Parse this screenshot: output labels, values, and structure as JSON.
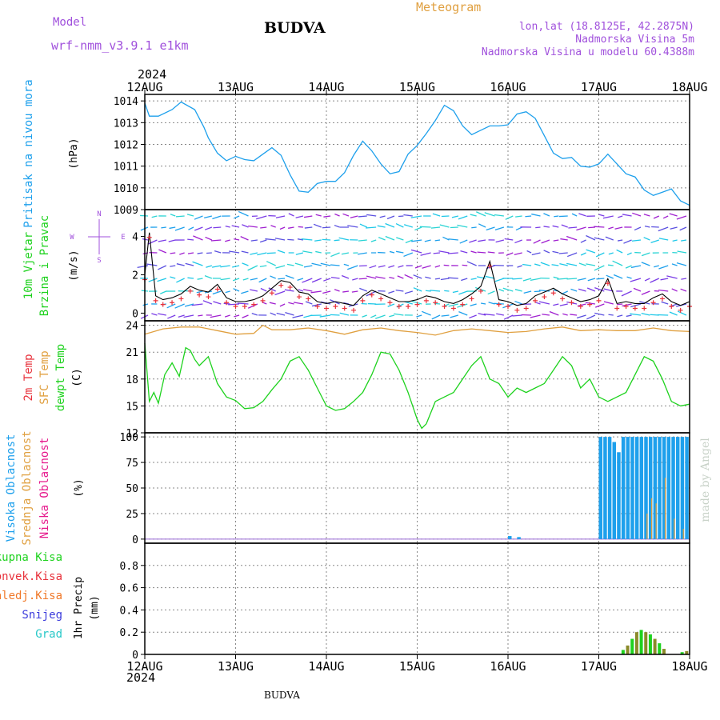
{
  "header": {
    "model_label": "Model",
    "model_name": "wrf-nmm_v3.9.1  e1km",
    "station": "BUDVA",
    "title": "Meteogram",
    "lonlat": "lon,lat (18.8125E, 42.2875N)",
    "elevation": "Nadmorska Visina 5m",
    "model_elevation": "Nadmorska Visina u modelu 60.4388m",
    "year_top": "2024",
    "year_bottom": "2024",
    "footer_station": "BUDVA",
    "credit": "made by Angel"
  },
  "colors": {
    "pressure": "#1ea0ec",
    "temp2m": "#e8323c",
    "sfc_temp": "#e0a040",
    "dewpt": "#1ed21e",
    "cloud_high": "#1ea0ec",
    "cloud_mid": "#e0a040",
    "cloud_low": "#e6198c",
    "rain_total": "#1ed21e",
    "rain_conv": "#e8323c",
    "rain_frozen": "#f07828",
    "snow": "#3c3cdc",
    "graupel": "#28c8c8",
    "wind_label": "#1ed21e",
    "wind_label2": "#1ea0ec",
    "compass": "#a050dc",
    "grid": "#888888"
  },
  "chart_data": [
    {
      "panel": "pressure",
      "type": "line",
      "ylabel": "Pritisak na nivou mora",
      "unit": "(hPa)",
      "ylim": [
        1009,
        1014.3
      ],
      "yticks": [
        1009,
        1010,
        1011,
        1012,
        1013,
        1014
      ],
      "x_day_index": [
        0,
        0.05,
        0.15,
        0.3,
        0.4,
        0.55,
        0.65,
        0.7,
        0.8,
        0.9,
        1.0,
        1.1,
        1.2,
        1.3,
        1.4,
        1.5,
        1.6,
        1.7,
        1.8,
        1.9,
        2.0,
        2.1,
        2.2,
        2.3,
        2.4,
        2.5,
        2.6,
        2.7,
        2.8,
        2.9,
        3.0,
        3.1,
        3.2,
        3.3,
        3.4,
        3.5,
        3.6,
        3.7,
        3.8,
        3.9,
        4.0,
        4.1,
        4.2,
        4.3,
        4.4,
        4.5,
        4.6,
        4.7,
        4.8,
        4.9,
        5.0,
        5.1,
        5.2,
        5.3,
        5.4,
        5.5,
        5.6,
        5.7,
        5.8,
        5.9,
        6.0
      ],
      "values": [
        1013.9,
        1013.3,
        1013.3,
        1013.6,
        1013.95,
        1013.6,
        1012.8,
        1012.3,
        1011.6,
        1011.25,
        1011.45,
        1011.3,
        1011.25,
        1011.55,
        1011.85,
        1011.5,
        1010.6,
        1009.85,
        1009.8,
        1010.2,
        1010.3,
        1010.3,
        1010.7,
        1011.5,
        1012.15,
        1011.7,
        1011.1,
        1010.65,
        1010.75,
        1011.55,
        1011.95,
        1012.5,
        1013.1,
        1013.8,
        1013.55,
        1012.85,
        1012.45,
        1012.65,
        1012.85,
        1012.85,
        1012.9,
        1013.4,
        1013.5,
        1013.2,
        1012.4,
        1011.6,
        1011.35,
        1011.4,
        1011.0,
        1010.95,
        1011.1,
        1011.55,
        1011.1,
        1010.65,
        1010.5,
        1009.9,
        1009.65,
        1009.8,
        1009.95,
        1009.4,
        1009.2
      ]
    },
    {
      "panel": "wind",
      "type": "line",
      "ylabel": "10m Vjetar",
      "ylabel2": "Brzina i Pravac",
      "unit": "(m/s)",
      "ylim": [
        -0.4,
        5.4
      ],
      "yticks": [
        0,
        2,
        4
      ],
      "compass": [
        "N",
        "E",
        "S",
        "W"
      ],
      "x_day_index": [
        0,
        0.05,
        0.12,
        0.2,
        0.3,
        0.4,
        0.5,
        0.6,
        0.7,
        0.8,
        0.9,
        1.0,
        1.1,
        1.2,
        1.3,
        1.4,
        1.5,
        1.6,
        1.7,
        1.8,
        1.9,
        2.0,
        2.1,
        2.2,
        2.3,
        2.4,
        2.5,
        2.6,
        2.7,
        2.8,
        2.9,
        3.0,
        3.1,
        3.2,
        3.3,
        3.4,
        3.5,
        3.6,
        3.7,
        3.8,
        3.9,
        4.0,
        4.1,
        4.2,
        4.3,
        4.4,
        4.5,
        4.6,
        4.7,
        4.8,
        4.9,
        5.0,
        5.1,
        5.2,
        5.3,
        5.4,
        5.5,
        5.6,
        5.7,
        5.8,
        5.9,
        6.0
      ],
      "values": [
        2.0,
        4.2,
        0.9,
        0.7,
        0.8,
        1.0,
        1.4,
        1.2,
        1.1,
        1.5,
        0.8,
        0.6,
        0.6,
        0.7,
        0.9,
        1.3,
        1.7,
        1.6,
        1.1,
        1.0,
        0.6,
        0.5,
        0.6,
        0.5,
        0.4,
        0.9,
        1.2,
        1.0,
        0.8,
        0.6,
        0.6,
        0.7,
        0.9,
        0.8,
        0.6,
        0.5,
        0.7,
        1.0,
        1.4,
        2.7,
        0.7,
        0.6,
        0.4,
        0.5,
        0.9,
        1.1,
        1.3,
        1.0,
        0.8,
        0.6,
        0.7,
        0.9,
        1.8,
        0.5,
        0.6,
        0.5,
        0.5,
        0.8,
        1.0,
        0.6,
        0.4,
        0.6
      ]
    },
    {
      "panel": "temperature",
      "type": "line",
      "ylabel": "2m Temp",
      "ylabel2": "SFC Temp",
      "ylabel3": "dewpt Temp",
      "unit": "(C)",
      "ylim": [
        12,
        24.5
      ],
      "yticks": [
        12,
        15,
        18,
        21,
        24
      ],
      "series": [
        {
          "name": "SFC Temp",
          "x_day_index": [
            0,
            0.2,
            0.4,
            0.6,
            0.8,
            1.0,
            1.2,
            1.3,
            1.4,
            1.6,
            1.8,
            2.0,
            2.2,
            2.4,
            2.6,
            2.8,
            3.0,
            3.2,
            3.4,
            3.6,
            3.8,
            4.0,
            4.2,
            4.4,
            4.6,
            4.8,
            5.0,
            5.2,
            5.4,
            5.6,
            5.8,
            6.0
          ],
          "values": [
            23.0,
            23.6,
            23.8,
            23.8,
            23.4,
            23.0,
            23.1,
            24.0,
            23.5,
            23.5,
            23.7,
            23.4,
            23.0,
            23.5,
            23.7,
            23.4,
            23.2,
            22.9,
            23.4,
            23.6,
            23.4,
            23.2,
            23.3,
            23.6,
            23.8,
            23.4,
            23.5,
            23.4,
            23.4,
            23.7,
            23.4,
            23.3
          ]
        },
        {
          "name": "dewpt Temp",
          "x_day_index": [
            0,
            0.05,
            0.1,
            0.15,
            0.22,
            0.3,
            0.38,
            0.45,
            0.5,
            0.55,
            0.6,
            0.7,
            0.75,
            0.8,
            0.9,
            1.0,
            1.1,
            1.2,
            1.3,
            1.4,
            1.5,
            1.6,
            1.7,
            1.8,
            1.9,
            2.0,
            2.1,
            2.2,
            2.3,
            2.4,
            2.5,
            2.6,
            2.7,
            2.8,
            2.9,
            3.0,
            3.05,
            3.1,
            3.2,
            3.3,
            3.4,
            3.5,
            3.6,
            3.7,
            3.8,
            3.9,
            4.0,
            4.1,
            4.2,
            4.3,
            4.4,
            4.5,
            4.6,
            4.7,
            4.8,
            4.9,
            5.0,
            5.1,
            5.2,
            5.3,
            5.4,
            5.5,
            5.6,
            5.7,
            5.8,
            5.9,
            6.0
          ],
          "values": [
            22.0,
            15.5,
            16.5,
            15.3,
            18.5,
            19.8,
            18.3,
            21.5,
            21.2,
            20.2,
            19.5,
            20.5,
            19.0,
            17.5,
            16.0,
            15.6,
            14.7,
            14.8,
            15.5,
            16.8,
            18.0,
            20.0,
            20.5,
            19.0,
            17.0,
            15.0,
            14.5,
            14.7,
            15.5,
            16.5,
            18.5,
            21.0,
            20.8,
            19.0,
            16.5,
            13.5,
            12.5,
            13.0,
            15.5,
            16.0,
            16.5,
            18.0,
            19.5,
            20.5,
            18.0,
            17.5,
            16.0,
            17.0,
            16.5,
            17.0,
            17.5,
            19.0,
            20.5,
            19.5,
            17.0,
            18.0,
            16.0,
            15.5,
            16.0,
            16.5,
            18.5,
            20.5,
            20.0,
            18.0,
            15.5,
            15.0,
            15.2
          ]
        }
      ]
    },
    {
      "panel": "clouds",
      "type": "bar",
      "ylabel": "Visoka Oblacnost",
      "ylabel2": "Srednja Oblacnost",
      "ylabel3": "Niska Oblacnost",
      "unit": "(%)",
      "ylim": [
        -4,
        104
      ],
      "yticks": [
        0,
        25,
        50,
        75,
        100
      ],
      "high_x_day_index": [
        4.0,
        4.1,
        5.0,
        5.05,
        5.1,
        5.15,
        5.2,
        5.25,
        5.3,
        5.35,
        5.4,
        5.45,
        5.5,
        5.55,
        5.6,
        5.65,
        5.7,
        5.75,
        5.8,
        5.85,
        5.9,
        5.95
      ],
      "high_values": [
        3,
        2,
        100,
        100,
        100,
        95,
        85,
        100,
        100,
        100,
        100,
        100,
        100,
        100,
        100,
        100,
        100,
        100,
        100,
        100,
        100,
        100
      ],
      "mid_x_day_index": [
        5.5,
        5.55,
        5.6,
        5.7,
        5.8,
        5.9
      ],
      "mid_values": [
        25,
        40,
        35,
        60,
        20,
        10
      ]
    },
    {
      "panel": "precipitation",
      "type": "bar",
      "ylabel": "1hr Precip",
      "unit": "(mm)",
      "ylim": [
        0,
        1.0
      ],
      "yticks": [
        0,
        0.2,
        0.4,
        0.6,
        0.8
      ],
      "legend": [
        "Ukupna Kisa",
        "Konvek.Kisa",
        "Zaledj.Kisa",
        "Snijeg",
        "Grad"
      ],
      "x_day_index": [
        5.25,
        5.3,
        5.35,
        5.4,
        5.45,
        5.5,
        5.55,
        5.6,
        5.65,
        5.7,
        5.9,
        5.95
      ],
      "values": [
        0.04,
        0.08,
        0.14,
        0.2,
        0.22,
        0.2,
        0.18,
        0.14,
        0.1,
        0.05,
        0.02,
        0.03
      ]
    }
  ],
  "x_axis": {
    "labels": [
      "12AUG",
      "13AUG",
      "14AUG",
      "15AUG",
      "16AUG",
      "17AUG",
      "18AUG"
    ]
  }
}
